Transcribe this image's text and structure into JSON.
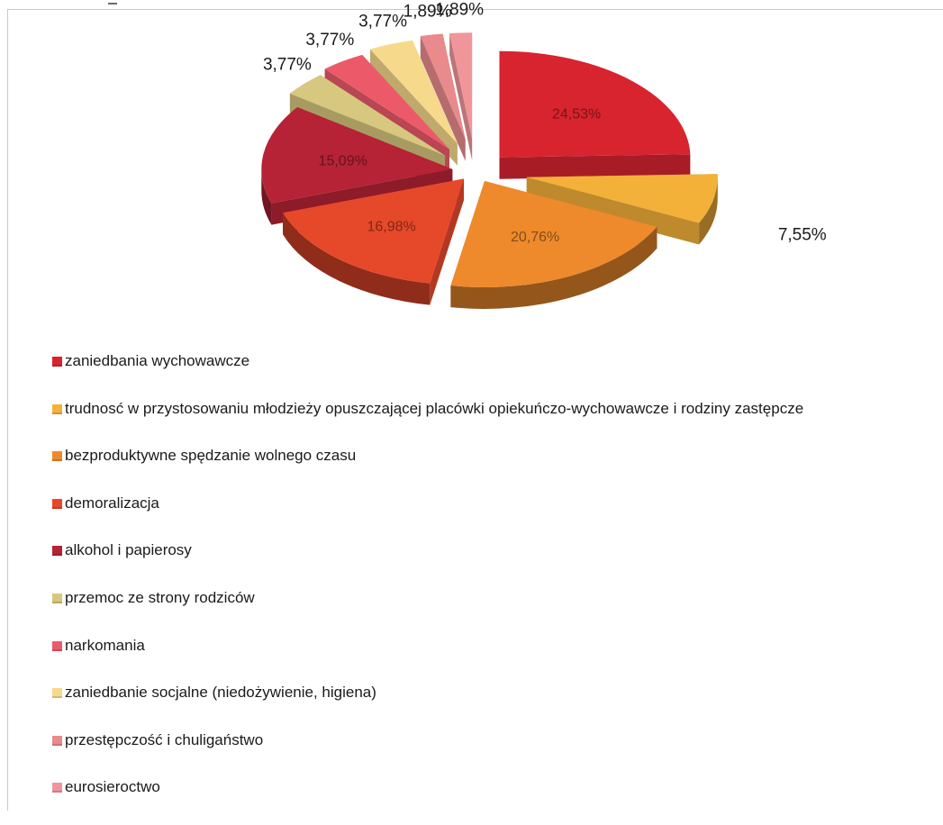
{
  "chart_data": {
    "type": "pie",
    "title": "",
    "style": "exploded 3d pie",
    "legend_position": "bottom",
    "slices": [
      {
        "label": "zaniedbania wychowawcze",
        "value": 24.53,
        "value_label": "24,53%",
        "color": "#d8242f"
      },
      {
        "label": "trudnosć w przystosowaniu młodzieży opuszczającej placówki opiekuńczo-wychowawcze i rodziny zastępcze",
        "value": 7.55,
        "value_label": "7,55%",
        "color": "#f3b13a"
      },
      {
        "label": "bezproduktywne spędzanie wolnego czasu",
        "value": 20.76,
        "value_label": "20,76%",
        "color": "#ee8a2c"
      },
      {
        "label": "demoralizacja",
        "value": 16.98,
        "value_label": "16,98%",
        "color": "#e6482a"
      },
      {
        "label": "alkohol i papierosy",
        "value": 15.09,
        "value_label": "15,09%",
        "color": "#b62236"
      },
      {
        "label": "przemoc ze strony rodziców",
        "value": 3.77,
        "value_label": "3,77%",
        "color": "#d8c77e"
      },
      {
        "label": "narkomania",
        "value": 3.77,
        "value_label": "3,77%",
        "color": "#ec5a6a"
      },
      {
        "label": "zaniedbanie socjalne (niedożywienie, higiena)",
        "value": 3.77,
        "value_label": "3,77%",
        "color": "#f6d98a"
      },
      {
        "label": "przestępczość i chuligaństwo",
        "value": 1.89,
        "value_label": "1,89%",
        "color": "#e98a8c"
      },
      {
        "label": "eurosieroctwo",
        "value": 1.89,
        "value_label": "1,89%",
        "color": "#f0969a"
      }
    ]
  }
}
